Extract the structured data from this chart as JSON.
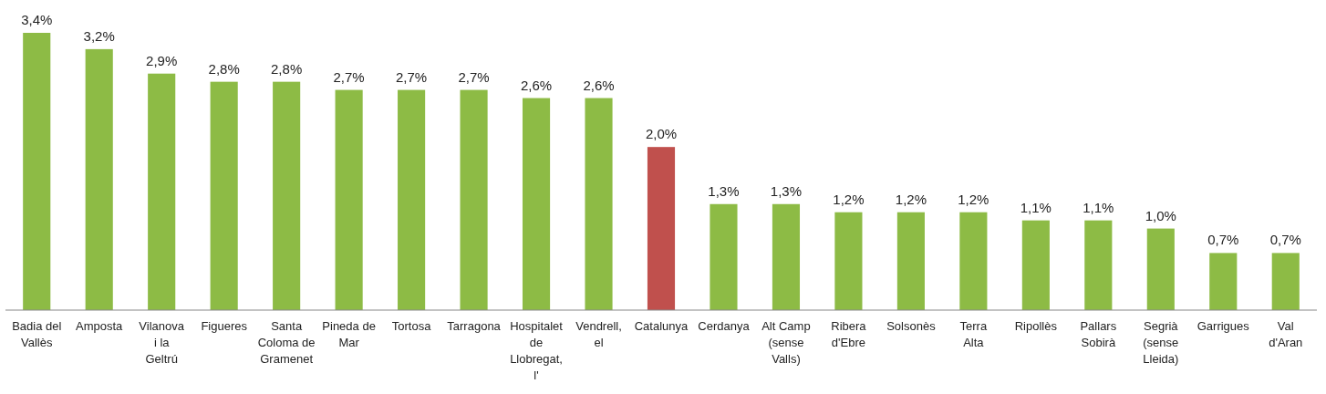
{
  "chart_data": {
    "type": "bar",
    "categories": [
      "Badia del Vallès",
      "Amposta",
      "Vilanova i la Geltrú",
      "Figueres",
      "Santa Coloma de Gramenet",
      "Pineda de Mar",
      "Tortosa",
      "Tarragona",
      "Hospitalet de Llobregat, l'",
      "Vendrell, el",
      "Catalunya",
      "Cerdanya",
      "Alt Camp (sense Valls)",
      "Ribera d'Ebre",
      "Solsonès",
      "Terra Alta",
      "Ripollès",
      "Pallars Sobirà",
      "Segrià (sense Lleida)",
      "Garrigues",
      "Val d'Aran"
    ],
    "values": [
      3.4,
      3.2,
      2.9,
      2.8,
      2.8,
      2.7,
      2.7,
      2.7,
      2.6,
      2.6,
      2.0,
      1.3,
      1.3,
      1.2,
      1.2,
      1.2,
      1.1,
      1.1,
      1.0,
      0.7,
      0.7
    ],
    "value_labels": [
      "3,4%",
      "3,2%",
      "2,9%",
      "2,8%",
      "2,8%",
      "2,7%",
      "2,7%",
      "2,7%",
      "2,6%",
      "2,6%",
      "2,0%",
      "1,3%",
      "1,3%",
      "1,2%",
      "1,2%",
      "1,2%",
      "1,1%",
      "1,1%",
      "1,0%",
      "0,7%",
      "0,7%"
    ],
    "colors": [
      "#8dbb45",
      "#8dbb45",
      "#8dbb45",
      "#8dbb45",
      "#8dbb45",
      "#8dbb45",
      "#8dbb45",
      "#8dbb45",
      "#8dbb45",
      "#8dbb45",
      "#c0504d",
      "#8dbb45",
      "#8dbb45",
      "#8dbb45",
      "#8dbb45",
      "#8dbb45",
      "#8dbb45",
      "#8dbb45",
      "#8dbb45",
      "#8dbb45",
      "#8dbb45"
    ]
  }
}
